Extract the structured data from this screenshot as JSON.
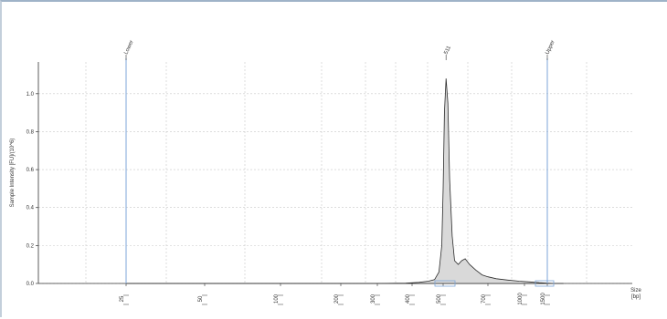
{
  "chart_data": {
    "type": "area",
    "ylabel": "Sample Intensity [FU]/(10^6)",
    "xlabel": "Size\n[bp]",
    "ylim": [
      0.0,
      1.1
    ],
    "y_ticks": [
      "0.0",
      "0.2",
      "0.4",
      "0.6",
      "0.8",
      "1.0"
    ],
    "x_tick_labels": [
      "25",
      "50",
      "100",
      "200",
      "300",
      "400",
      "500",
      "700",
      "1000",
      "1500"
    ],
    "x_tick_values": [
      25,
      50,
      100,
      200,
      300,
      400,
      500,
      700,
      1000,
      1500
    ],
    "markers": [
      {
        "label": "Lower",
        "x": 25
      },
      {
        "label": "511",
        "x": 511
      },
      {
        "label": "Upper",
        "x": 1500
      }
    ],
    "series": [
      {
        "x": [
          25,
          100,
          200,
          300,
          380,
          420,
          450,
          470,
          485,
          495,
          500,
          505,
          511,
          518,
          525,
          535,
          545,
          560,
          575,
          590,
          610,
          640,
          670,
          700,
          760,
          850,
          950,
          1100,
          1300,
          1500,
          1700,
          2000
        ],
        "values": [
          0.0,
          0.0,
          0.0,
          0.0,
          0.002,
          0.006,
          0.012,
          0.02,
          0.06,
          0.2,
          0.5,
          0.9,
          1.08,
          0.95,
          0.55,
          0.25,
          0.12,
          0.1,
          0.12,
          0.13,
          0.1,
          0.07,
          0.045,
          0.035,
          0.025,
          0.018,
          0.012,
          0.008,
          0.004,
          0.002,
          0.0,
          0.0
        ]
      }
    ],
    "grid": true
  }
}
